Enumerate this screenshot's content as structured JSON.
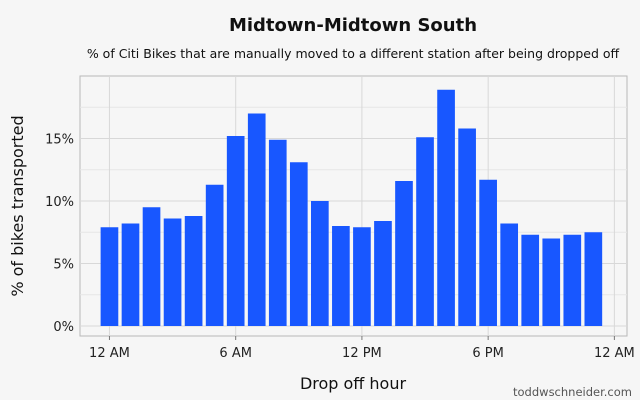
{
  "chart_data": {
    "type": "bar",
    "title": "Midtown-Midtown South",
    "subtitle": "% of Citi Bikes that are manually moved to a different station after being dropped off",
    "xlabel": "Drop off hour",
    "ylabel": "% of bikes transported",
    "credit": "toddwschneider.com",
    "x_tick_labels": [
      "12 AM",
      "6 AM",
      "12 PM",
      "6 PM",
      "12 AM"
    ],
    "x_tick_hours": [
      0,
      6,
      12,
      18,
      24
    ],
    "y_tick_labels": [
      "0%",
      "5%",
      "10%",
      "15%"
    ],
    "y_tick_values": [
      0,
      5,
      10,
      15
    ],
    "xlim": [
      -1.4,
      24.6
    ],
    "ylim": [
      -0.8,
      20
    ],
    "grid": true,
    "bar_color": "#1857ff",
    "categories": [
      0,
      1,
      2,
      3,
      4,
      5,
      6,
      7,
      8,
      9,
      10,
      11,
      12,
      13,
      14,
      15,
      16,
      17,
      18,
      19,
      20,
      21,
      22,
      23
    ],
    "values": [
      7.9,
      8.2,
      9.5,
      8.6,
      8.8,
      11.3,
      15.2,
      17.0,
      14.9,
      13.1,
      10.0,
      8.0,
      7.9,
      8.4,
      11.6,
      15.1,
      18.9,
      15.8,
      11.7,
      8.2,
      7.3,
      7.0,
      7.3,
      7.5
    ]
  }
}
